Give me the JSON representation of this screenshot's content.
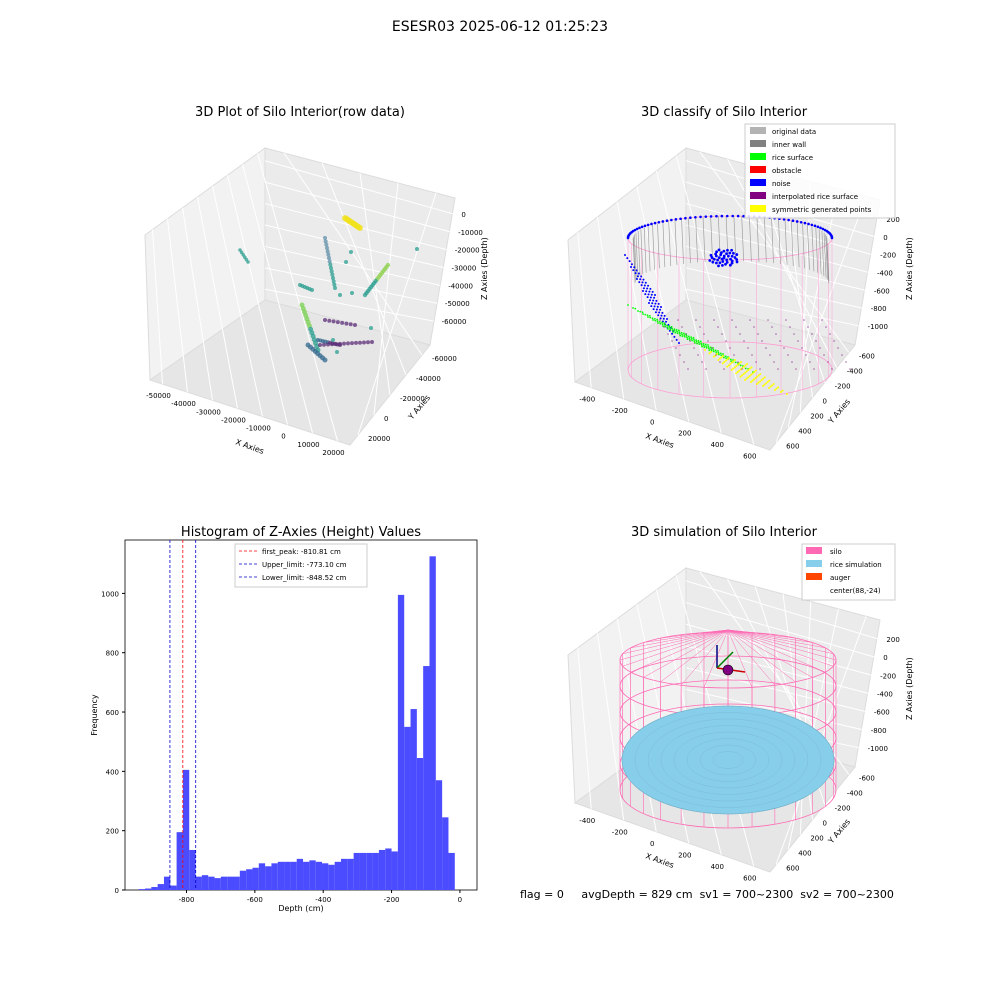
{
  "figure_title": "ESESR03 2025-06-12 01:25:23",
  "status": {
    "flag": "flag = 0",
    "avg_depth": "avgDepth = 829 cm",
    "sv1": "sv1 = 700~2300",
    "sv2": "sv2 = 700~2300"
  },
  "chart_data": [
    {
      "type": "scatter",
      "title": "3D Plot of Silo Interior(row data)",
      "xlabel": "X Axies",
      "ylabel": "Y Axies",
      "zlabel": "Z Axies (Depth)",
      "x_ticks": [
        "-50000",
        "-40000",
        "-30000",
        "-20000",
        "-10000",
        "0",
        "10000",
        "20000"
      ],
      "y_ticks": [
        "-60000",
        "-40000",
        "-20000",
        "0",
        "20000"
      ],
      "z_ticks": [
        "0",
        "-10000",
        "-20000",
        "-30000",
        "-40000",
        "-50000",
        "-60000"
      ],
      "colors": {
        "high": "#f0e21c",
        "mid": "#2a9d8f",
        "low": "#5b2d77"
      }
    },
    {
      "type": "scatter",
      "title": "3D classify of Silo Interior",
      "xlabel": "X Axies",
      "ylabel": "Y Axies",
      "zlabel": "Z Axies (Depth)",
      "x_ticks": [
        "-400",
        "-200",
        "0",
        "200",
        "400",
        "600"
      ],
      "y_ticks": [
        "-600",
        "-400",
        "-200",
        "0",
        "200",
        "400",
        "600"
      ],
      "z_ticks": [
        "200",
        "0",
        "-200",
        "-400",
        "-600",
        "-800",
        "-1000"
      ],
      "legend": [
        {
          "label": "original data",
          "color": "#b3b3b3"
        },
        {
          "label": "inner wall",
          "color": "#808080"
        },
        {
          "label": "rice surface",
          "color": "#00ff00"
        },
        {
          "label": "obstacle",
          "color": "#ff0000"
        },
        {
          "label": "noise",
          "color": "#0000ff"
        },
        {
          "label": "interpolated rice surface",
          "color": "#800080"
        },
        {
          "label": "symmetric generated points",
          "color": "#ffff00"
        }
      ],
      "legend_position": "top-right"
    },
    {
      "type": "bar",
      "title": "Histogram of Z-Axies (Height) Values",
      "xlabel": "Depth (cm)",
      "ylabel": "Frequency",
      "xlim": [
        -980,
        50
      ],
      "ylim": [
        0,
        1180
      ],
      "x_ticks": [
        -800,
        -600,
        -400,
        -200,
        0
      ],
      "y_ticks": [
        0,
        200,
        400,
        600,
        800,
        1000
      ],
      "bar_color": "#4b4bff",
      "bin_width": 18.5,
      "bin_starts": [
        -940,
        -921.5,
        -903,
        -884.5,
        -866,
        -847.5,
        -829,
        -810.5,
        -792,
        -773.5,
        -755,
        -736.5,
        -718,
        -699.5,
        -681,
        -662.5,
        -644,
        -625.5,
        -607,
        -588.5,
        -570,
        -551.5,
        -533,
        -514.5,
        -496,
        -477.5,
        -459,
        -440.5,
        -422,
        -403.5,
        -385,
        -366.5,
        -348,
        -329.5,
        -311,
        -292.5,
        -274,
        -255.5,
        -237,
        -218.5,
        -200,
        -181.5,
        -163,
        -144.5,
        -126,
        -107.5,
        -89,
        -70.5,
        -52,
        -33.5,
        -15
      ],
      "values": [
        3,
        5,
        10,
        20,
        45,
        15,
        195,
        405,
        135,
        45,
        50,
        45,
        40,
        45,
        45,
        45,
        65,
        70,
        75,
        90,
        80,
        90,
        95,
        95,
        95,
        105,
        95,
        100,
        95,
        90,
        85,
        95,
        105,
        105,
        125,
        125,
        125,
        125,
        135,
        140,
        130,
        995,
        550,
        610,
        445,
        755,
        1125,
        370,
        245,
        125,
        0
      ],
      "lines": [
        {
          "label": "first_peak: -810.81 cm",
          "x": -810.81,
          "color": "#ff0000"
        },
        {
          "label": "Upper_limit: -773.10 cm",
          "x": -773.1,
          "color": "#0000cc"
        },
        {
          "label": "Lower_limit: -848.52 cm",
          "x": -848.52,
          "color": "#0000cc"
        }
      ],
      "legend_position": "top-center"
    },
    {
      "type": "scatter",
      "title": "3D simulation of Silo Interior",
      "xlabel": "X Axies",
      "ylabel": "Y Axies",
      "zlabel": "Z Axies (Depth)",
      "x_ticks": [
        "-400",
        "-200",
        "0",
        "200",
        "400",
        "600"
      ],
      "y_ticks": [
        "-600",
        "-400",
        "-200",
        "0",
        "200",
        "400",
        "600"
      ],
      "z_ticks": [
        "200",
        "0",
        "-200",
        "-400",
        "-600",
        "-800",
        "-1000"
      ],
      "legend": [
        {
          "label": "silo",
          "color": "#ff69b4"
        },
        {
          "label": "rice simulation",
          "color": "#87ceeb"
        },
        {
          "label": "auger",
          "color": "#ff4500"
        },
        {
          "label": "center(88,-24)",
          "color": "#ffffff"
        }
      ],
      "legend_position": "top-right"
    }
  ]
}
